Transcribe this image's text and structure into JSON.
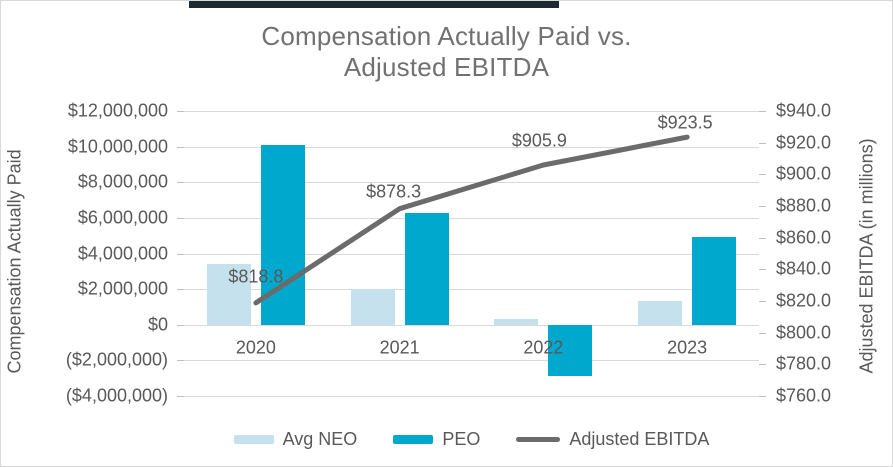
{
  "frame": {
    "background": "#ffffff",
    "border_color": "#d9d9d9",
    "top_accent_bar_color": "#1e2a31"
  },
  "chart_data": {
    "type": "combo-bar-line",
    "title_lines": [
      "Compensation Actually Paid vs.",
      "Adjusted EBITDA"
    ],
    "title_color": "#717171",
    "categories": [
      "2020",
      "2021",
      "2022",
      "2023"
    ],
    "bar_series": [
      {
        "name": "Avg NEO",
        "color": "#c5e1ed",
        "values_millions": [
          3.4,
          2.0,
          0.3,
          1.35
        ]
      },
      {
        "name": "PEO",
        "color": "#00a8ce",
        "values_millions": [
          10.1,
          6.3,
          -2.9,
          4.9
        ]
      }
    ],
    "line_series": {
      "name": "Adjusted EBITDA",
      "color": "#6b6b6b",
      "values": [
        818.8,
        878.3,
        905.9,
        923.5
      ],
      "point_labels": [
        "$818.8",
        "$878.3",
        "$905.9",
        "$923.5"
      ]
    },
    "left_axis": {
      "title": "Compensation Actually Paid",
      "min": -4000000,
      "max": 12000000,
      "ticks": [
        "$12,000,000",
        "$10,000,000",
        "$8,000,000",
        "$6,000,000",
        "$4,000,000",
        "$2,000,000",
        "$0",
        "($2,000,000)",
        "($4,000,000)"
      ]
    },
    "right_axis": {
      "title": "Adjusted EBITDA (in millions)",
      "min": 760,
      "max": 940,
      "ticks": [
        "$940.0",
        "$920.0",
        "$900.0",
        "$880.0",
        "$860.0",
        "$840.0",
        "$820.0",
        "$800.0",
        "$780.0",
        "$760.0"
      ]
    },
    "legend": [
      {
        "label": "Avg NEO",
        "marker": "bar",
        "color": "#c5e1ed"
      },
      {
        "label": "PEO",
        "marker": "bar",
        "color": "#00a8ce"
      },
      {
        "label": "Adjusted EBITDA",
        "marker": "line",
        "color": "#6b6b6b"
      }
    ],
    "grid": "horizontal",
    "gridline_color": "#d9d9d9",
    "text_color": "#595959"
  }
}
